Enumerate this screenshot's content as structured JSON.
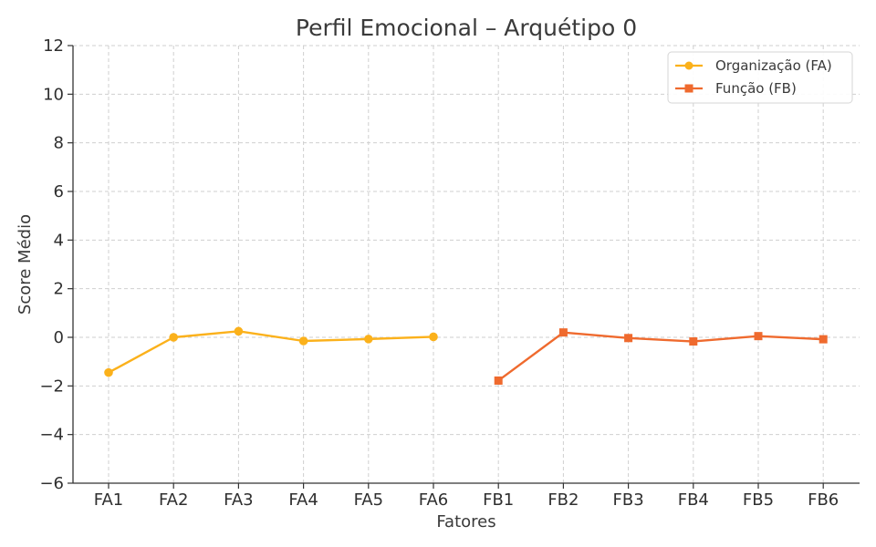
{
  "chart_data": {
    "type": "line",
    "title": "Perfil Emocional – Arquétipo 0",
    "xlabel": "Fatores",
    "ylabel": "Score Médio",
    "categories": [
      "FA1",
      "FA2",
      "FA3",
      "FA4",
      "FA5",
      "FA6",
      "FB1",
      "FB2",
      "FB3",
      "FB4",
      "FB5",
      "FB6"
    ],
    "ylim": [
      -6,
      12
    ],
    "yticks": [
      -6,
      -4,
      -2,
      0,
      2,
      4,
      6,
      8,
      10,
      12
    ],
    "ytick_labels": [
      "−6",
      "−4",
      "−2",
      "0",
      "2",
      "4",
      "6",
      "8",
      "10",
      "12"
    ],
    "grid": true,
    "legend_position": "top-right",
    "series": [
      {
        "name": "Organização (FA)",
        "color": "#FBB11B",
        "marker": "circle",
        "x": [
          "FA1",
          "FA2",
          "FA3",
          "FA4",
          "FA5",
          "FA6"
        ],
        "values": [
          -1.45,
          0.0,
          0.25,
          -0.15,
          -0.07,
          0.02
        ]
      },
      {
        "name": "Função (FB)",
        "color": "#EF6A2E",
        "marker": "square",
        "x": [
          "FB1",
          "FB2",
          "FB3",
          "FB4",
          "FB5",
          "FB6"
        ],
        "values": [
          -1.78,
          0.2,
          -0.03,
          -0.17,
          0.05,
          -0.08
        ]
      }
    ]
  }
}
